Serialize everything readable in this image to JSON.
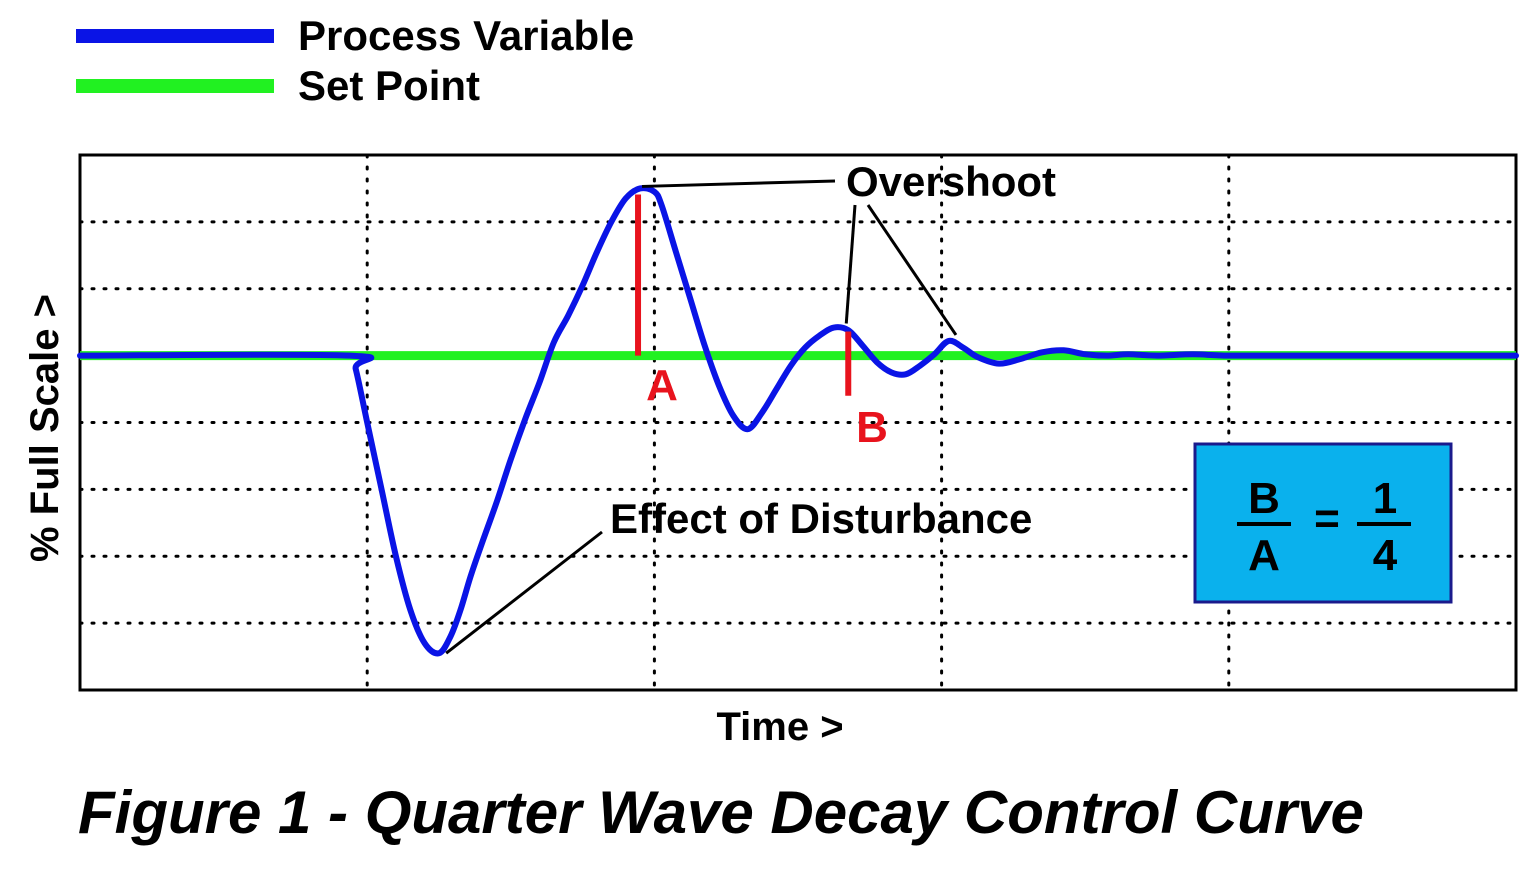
{
  "chart_data": {
    "type": "line",
    "title": "Figure 1 - Quarter Wave Decay Control Curve",
    "xlabel": "Time >",
    "ylabel": "% Full Scale >",
    "xlim": [
      0,
      10
    ],
    "ylim": [
      -5,
      3
    ],
    "grid": true,
    "legend_position": "top-left",
    "series": [
      {
        "name": "Process Variable",
        "color": "#0a14e6",
        "x": [
          0,
          1.88,
          1.92,
          2.0,
          2.1,
          2.2,
          2.3,
          2.4,
          2.5,
          2.58,
          2.65,
          2.72,
          2.8,
          2.9,
          3.0,
          3.1,
          3.2,
          3.3,
          3.4,
          3.5,
          3.6,
          3.7,
          3.8,
          3.9,
          4.0,
          4.05,
          4.15,
          4.25,
          4.35,
          4.45,
          4.55,
          4.65,
          4.75,
          4.85,
          4.95,
          5.05,
          5.15,
          5.25,
          5.35,
          5.45,
          5.55,
          5.65,
          5.75,
          5.85,
          5.95,
          6.05,
          6.15,
          6.25,
          6.4,
          6.55,
          6.7,
          6.85,
          7.0,
          7.15,
          7.3,
          7.5,
          7.75,
          8.0,
          8.5,
          9.0,
          9.5,
          10
        ],
        "values": [
          0,
          0,
          -0.2,
          -1.0,
          -2.0,
          -3.0,
          -3.8,
          -4.3,
          -4.45,
          -4.2,
          -3.8,
          -3.3,
          -2.8,
          -2.2,
          -1.55,
          -0.95,
          -0.4,
          0.2,
          0.6,
          1.05,
          1.55,
          2.0,
          2.35,
          2.5,
          2.45,
          2.25,
          1.55,
          0.85,
          0.15,
          -0.45,
          -0.9,
          -1.1,
          -0.85,
          -0.5,
          -0.15,
          0.12,
          0.3,
          0.42,
          0.38,
          0.15,
          -0.1,
          -0.25,
          -0.28,
          -0.15,
          0.02,
          0.22,
          0.12,
          -0.02,
          -0.12,
          -0.05,
          0.05,
          0.08,
          0.02,
          0.0,
          0.02,
          0.0,
          0.02,
          0.0,
          0.0,
          0.0,
          0.0,
          0.0
        ]
      },
      {
        "name": "Set Point",
        "color": "#21f121",
        "x": [
          0,
          10
        ],
        "values": [
          0,
          0
        ]
      }
    ],
    "annotations": {
      "overshoot": "Overshoot",
      "disturbance": "Effect of Disturbance",
      "label_a": "A",
      "label_b": "B",
      "ratio": {
        "numerator_left": "B",
        "denominator_left": "A",
        "equals": "=",
        "numerator_right": "1",
        "denominator_right": "4"
      },
      "ratio_box_color": "#0ab1ed",
      "marker_color": "#e8131d"
    }
  }
}
